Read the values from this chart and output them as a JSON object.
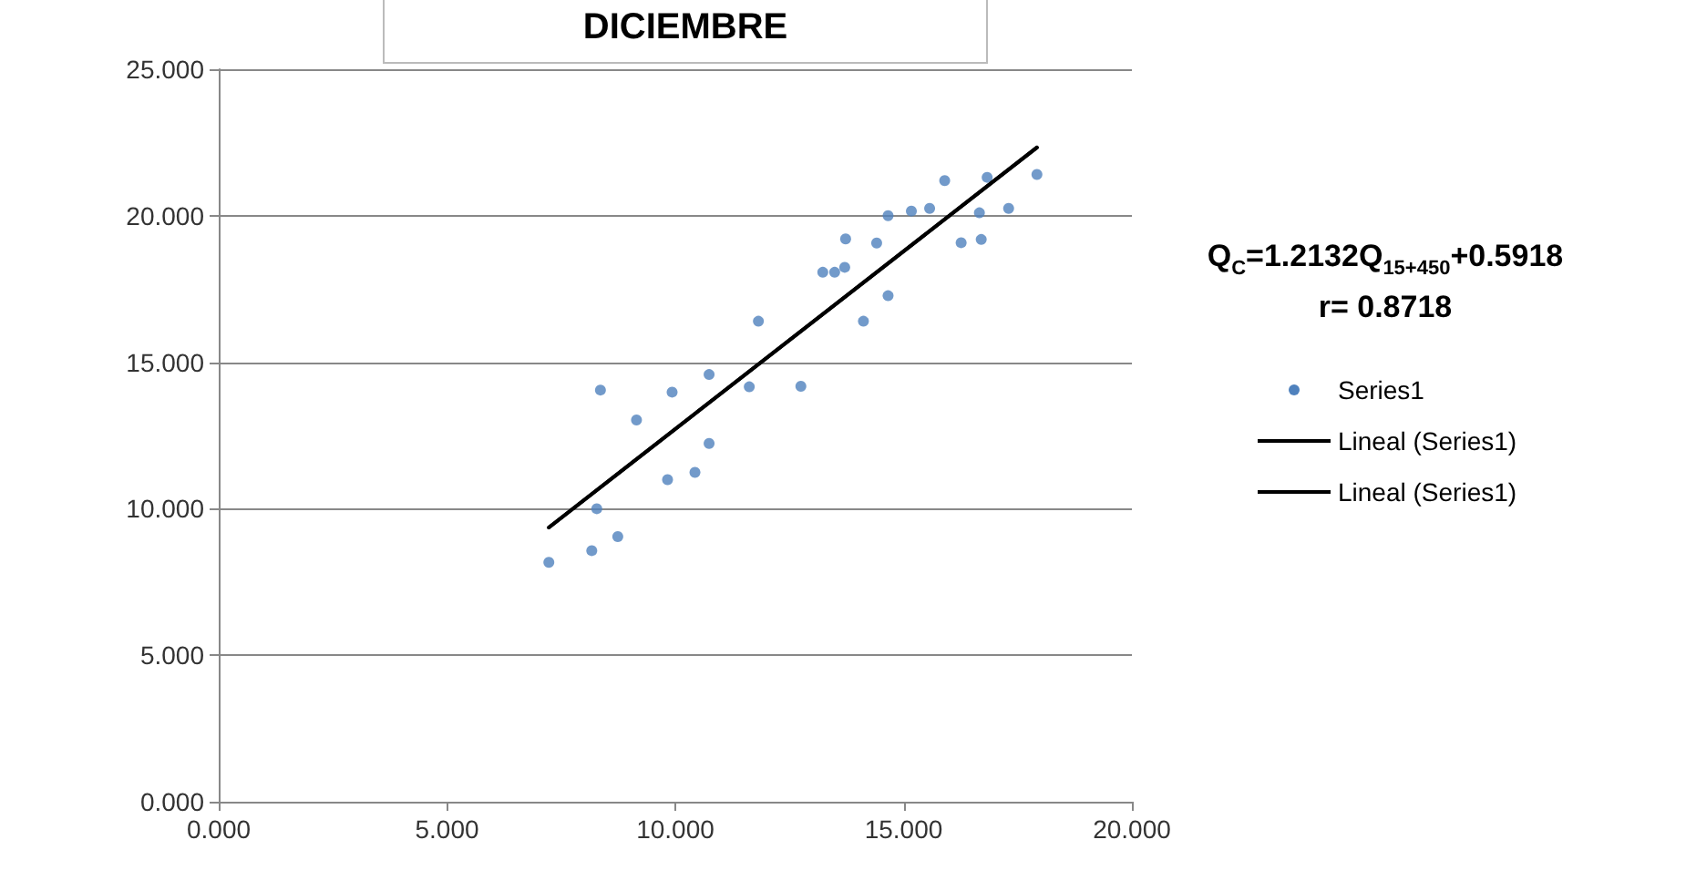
{
  "chart_data": {
    "type": "scatter",
    "title": "DICIEMBRE",
    "annotations": [
      "Q$_{C}$=1.2132Q$_{15+450}$+0.5918",
      "r= 0.8718"
    ],
    "series": [
      {
        "name": "Series1",
        "color": "#4f81bd",
        "marker": "circle",
        "x": [
          7.23,
          8.17,
          8.74,
          8.28,
          8.36,
          9.15,
          9.93,
          9.83,
          10.43,
          10.74,
          10.74,
          11.62,
          11.82,
          12.75,
          13.23,
          13.49,
          13.71,
          13.73,
          14.12,
          14.41,
          14.66,
          14.66,
          15.17,
          15.57,
          15.9,
          16.83,
          16.66,
          17.3,
          16.26,
          16.7,
          17.92
        ],
        "values": [
          8.17,
          8.57,
          9.05,
          10.0,
          14.05,
          13.03,
          13.98,
          10.99,
          11.24,
          12.23,
          14.58,
          14.16,
          16.4,
          14.18,
          18.07,
          18.07,
          18.24,
          19.21,
          16.4,
          19.07,
          20.0,
          17.27,
          20.16,
          20.25,
          21.2,
          21.31,
          20.1,
          20.25,
          19.08,
          19.19,
          21.41
        ]
      },
      {
        "name": "Lineal (Series1)",
        "type": "line",
        "color": "#000000",
        "marker": "none",
        "line_style": "solid",
        "x": [
          7.23,
          17.92
        ],
        "values": [
          9.36,
          22.33
        ]
      },
      {
        "name": "Lineal (Series1)",
        "type": "line",
        "color": "#000000",
        "marker": "none",
        "line_style": "solid",
        "x": [
          7.23,
          17.92
        ],
        "values": [
          9.36,
          22.33
        ]
      }
    ],
    "xlim": [
      0,
      20
    ],
    "xticks": [
      {
        "value": 0,
        "label": "0.000"
      },
      {
        "value": 5,
        "label": "5.000"
      },
      {
        "value": 10,
        "label": "10.000"
      },
      {
        "value": 15,
        "label": "15.000"
      },
      {
        "value": 20,
        "label": "20.000"
      }
    ],
    "ylim": [
      0,
      25
    ],
    "yticks": [
      {
        "value": 0,
        "label": "0.000"
      },
      {
        "value": 5,
        "label": "5.000"
      },
      {
        "value": 10,
        "label": "10.000"
      },
      {
        "value": 15,
        "label": "15.000"
      },
      {
        "value": 20,
        "label": "20.000"
      },
      {
        "value": 25,
        "label": "25.000"
      }
    ],
    "grid": "y",
    "legend": "right"
  }
}
